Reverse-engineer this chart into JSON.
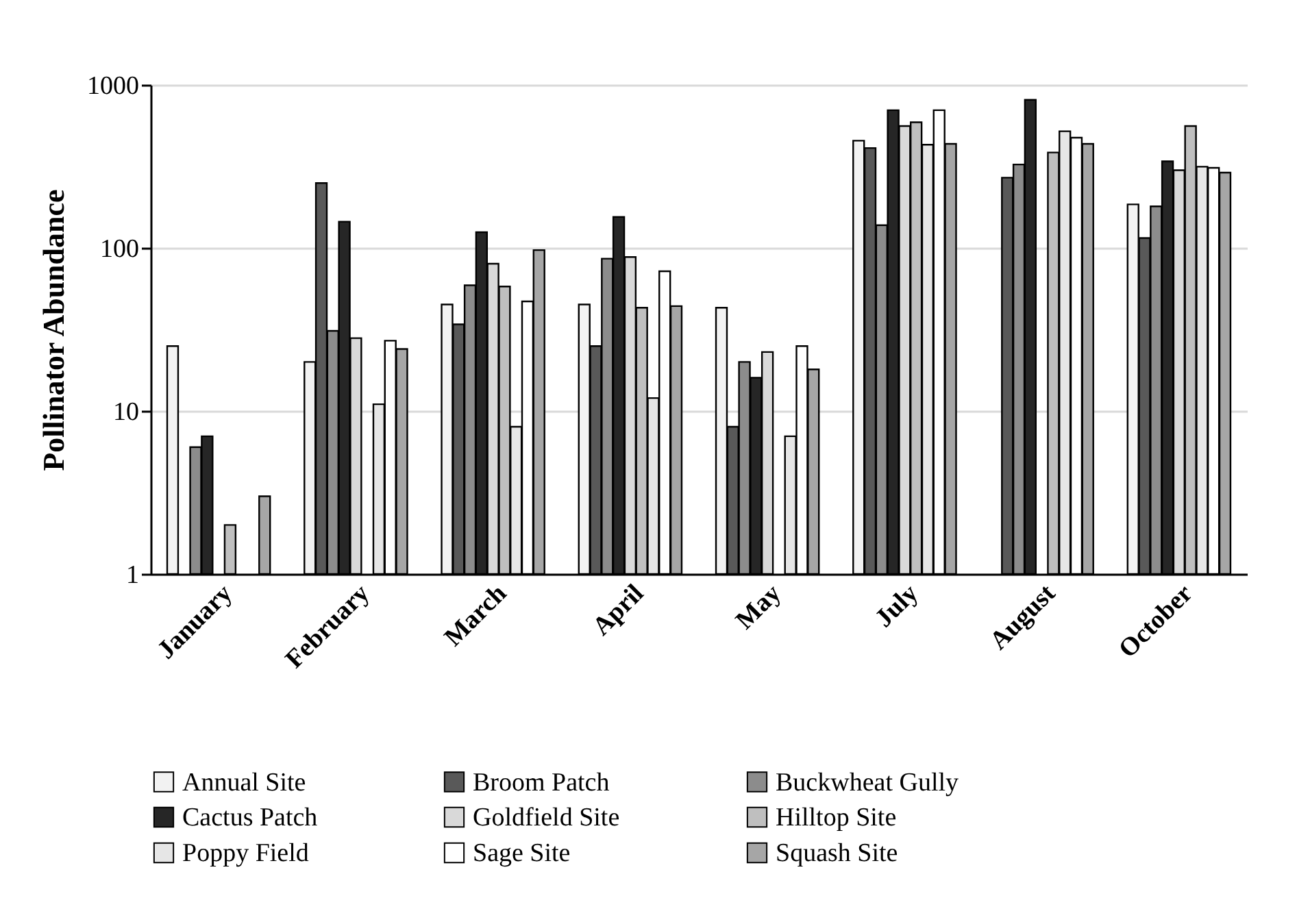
{
  "chart_data": {
    "type": "bar",
    "ylabel": "Pollinator Abundance",
    "log": true,
    "grid": "y",
    "legend": "bottom",
    "categories": [
      "January",
      "February",
      "March",
      "April",
      "May",
      "July",
      "August",
      "October"
    ],
    "ylim": [
      1,
      1000
    ],
    "yticks": [
      1,
      10,
      100,
      1000
    ],
    "series": [
      {
        "name": "Annual Site",
        "color": "#f2f2f2",
        "values": [
          25,
          20,
          45,
          45,
          43,
          455,
          null,
          185
        ]
      },
      {
        "name": "Broom Patch",
        "color": "#595959",
        "values": [
          null,
          250,
          34,
          25,
          8,
          410,
          270,
          115
        ]
      },
      {
        "name": "Buckwheat Gully",
        "color": "#8c8c8c",
        "values": [
          6,
          31,
          59,
          86,
          20,
          138,
          325,
          180
        ]
      },
      {
        "name": "Cactus Patch",
        "color": "#262626",
        "values": [
          7,
          145,
          125,
          155,
          16,
          700,
          810,
          340
        ]
      },
      {
        "name": "Goldfield Site",
        "color": "#d9d9d9",
        "values": [
          null,
          28,
          80,
          88,
          23,
          560,
          null,
          300
        ]
      },
      {
        "name": "Hilltop Site",
        "color": "#bfbfbf",
        "values": [
          2,
          null,
          58,
          43,
          null,
          590,
          385,
          560
        ]
      },
      {
        "name": "Poppy Field",
        "color": "#e6e6e6",
        "values": [
          null,
          11,
          8,
          12,
          7,
          430,
          520,
          315
        ]
      },
      {
        "name": "Sage Site",
        "color": "#ffffff",
        "values": [
          null,
          27,
          47,
          72,
          25,
          700,
          475,
          310
        ]
      },
      {
        "name": "Squash Site",
        "color": "#a6a6a6",
        "values": [
          3,
          24,
          97,
          44,
          18,
          435,
          435,
          290
        ]
      }
    ]
  }
}
